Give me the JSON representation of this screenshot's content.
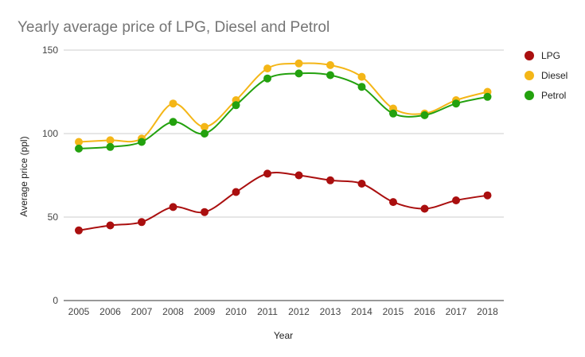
{
  "chart_data": {
    "type": "line",
    "title": "Yearly average price of LPG, Diesel and Petrol",
    "xlabel": "Year",
    "ylabel": "Average price (ppl)",
    "ylim": [
      0,
      150
    ],
    "yticks": [
      0,
      50,
      100,
      150
    ],
    "grid": true,
    "legend": "right",
    "categories": [
      "2005",
      "2006",
      "2007",
      "2008",
      "2009",
      "2010",
      "2011",
      "2012",
      "2013",
      "2014",
      "2015",
      "2016",
      "2017",
      "2018"
    ],
    "series": [
      {
        "name": "LPG",
        "color": "#aa0f0f",
        "values": [
          42,
          45,
          47,
          56,
          53,
          65,
          76,
          75,
          72,
          70,
          59,
          55,
          60,
          63
        ]
      },
      {
        "name": "Diesel",
        "color": "#f4b617",
        "values": [
          95,
          96,
          97,
          118,
          104,
          120,
          139,
          142,
          141,
          134,
          115,
          112,
          120,
          125
        ]
      },
      {
        "name": "Petrol",
        "color": "#23a10e",
        "values": [
          91,
          92,
          95,
          107,
          100,
          117,
          133,
          136,
          135,
          128,
          112,
          111,
          118,
          122
        ]
      }
    ]
  }
}
